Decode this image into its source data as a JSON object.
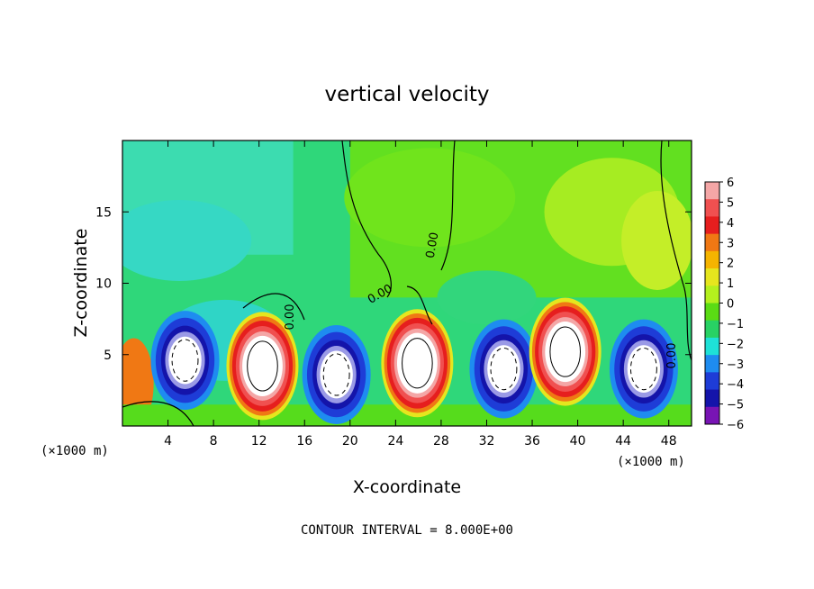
{
  "chart_data": {
    "type": "heatmap",
    "title": "vertical velocity",
    "xlabel": "X-coordinate",
    "ylabel": "Z-coordinate",
    "x_unit": "(×1000 m)",
    "x_unit_right": "(×1000 m)",
    "footer": "CONTOUR INTERVAL = 8.000E+00",
    "xlim": [
      0,
      50
    ],
    "ylim": [
      0,
      20
    ],
    "x_ticks": [
      4,
      8,
      12,
      16,
      20,
      24,
      28,
      32,
      36,
      40,
      44,
      48
    ],
    "y_ticks": [
      5,
      10,
      15
    ],
    "colorbar": {
      "ticks": [
        6,
        5,
        4,
        3,
        2,
        1,
        0,
        -1,
        -2,
        -3,
        -4,
        -5,
        -6
      ],
      "tick_labels": [
        "6",
        "5",
        "4",
        "3",
        "2",
        "1",
        "0",
        "−1",
        "−2",
        "−3",
        "−4",
        "−5",
        "−6"
      ],
      "colors": [
        "#f4a6a6",
        "#f05050",
        "#e61e1e",
        "#f07814",
        "#f5b400",
        "#e6e61e",
        "#b4f01e",
        "#5adc14",
        "#28d264",
        "#1ee1d7",
        "#1e8cf0",
        "#1e3cd7",
        "#1414aa",
        "#7814b4"
      ]
    },
    "contour_labels": [
      "0.00",
      "0.00",
      "0.00",
      "0.00"
    ],
    "contour_interval": 8.0,
    "cells": [
      {
        "x": 5.5,
        "z": 4.6,
        "w": -7
      },
      {
        "x": 12.3,
        "z": 4.2,
        "w": 10
      },
      {
        "x": 18.8,
        "z": 3.6,
        "w": -7
      },
      {
        "x": 25.9,
        "z": 4.4,
        "w": 10
      },
      {
        "x": 33.5,
        "z": 4.0,
        "w": -7
      },
      {
        "x": 38.9,
        "z": 5.2,
        "w": 10
      },
      {
        "x": 45.8,
        "z": 4.0,
        "w": -7
      }
    ]
  }
}
